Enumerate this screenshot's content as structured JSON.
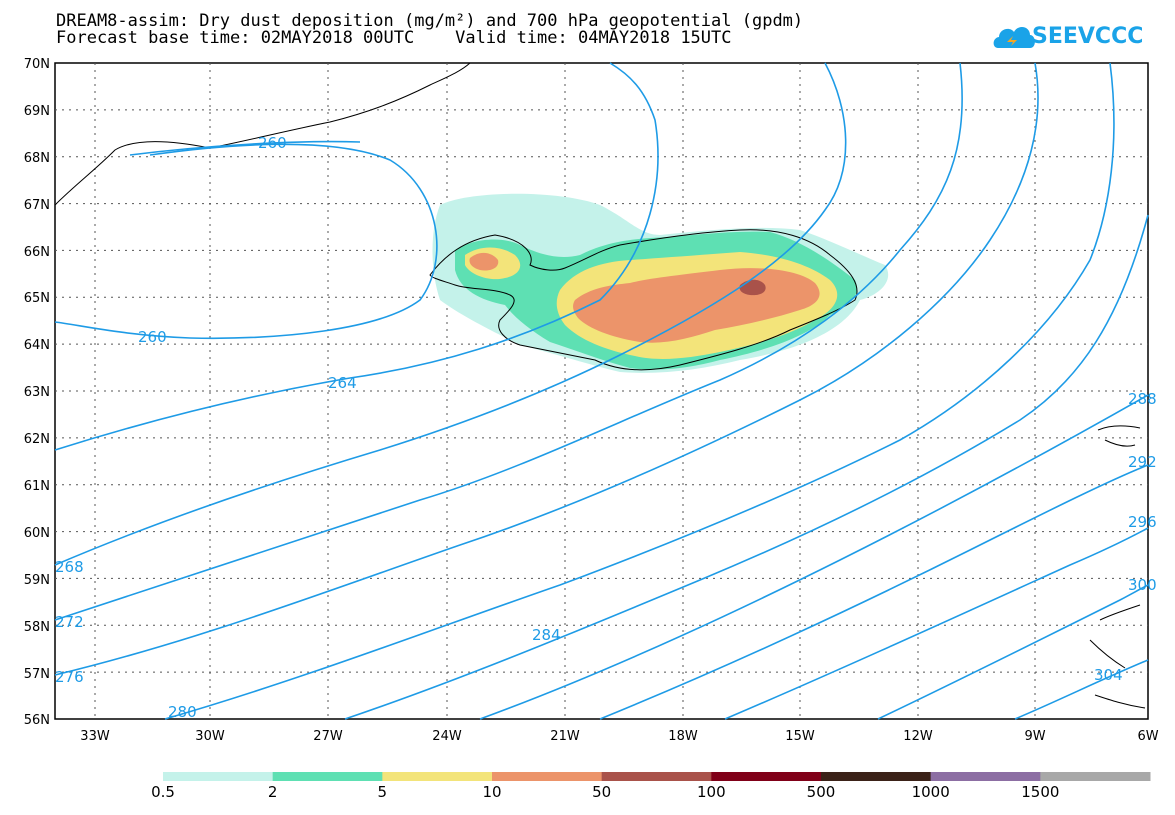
{
  "title_line1": "DREAM8-assim: Dry dust deposition (mg/m²) and 700 hPa geopotential (gpdm)",
  "title_line2": "Forecast base time: 02MAY2018 00UTC    Valid time: 04MAY2018 15UTC",
  "logo_text": "SEEVCCC",
  "map": {
    "lat_labels": [
      "70N",
      "69N",
      "68N",
      "67N",
      "66N",
      "65N",
      "64N",
      "63N",
      "62N",
      "61N",
      "60N",
      "59N",
      "58N",
      "57N",
      "56N"
    ],
    "lon_labels": [
      "33W",
      "30W",
      "27W",
      "24W",
      "21W",
      "18W",
      "15W",
      "12W",
      "9W",
      "6W"
    ],
    "contour_labels": [
      "260",
      "260",
      "264",
      "268",
      "272",
      "276",
      "280",
      "284",
      "288",
      "292",
      "296",
      "300",
      "304"
    ],
    "colors": {
      "contour": "#1e9be6",
      "dust_levels": [
        "#c4f2ea",
        "#5ee0b3",
        "#f3e47a",
        "#ec946a",
        "#a9524a",
        "#800018",
        "#3b2218",
        "#8c6ea3",
        "#a8a8a8"
      ]
    }
  },
  "legend": {
    "labels": [
      "0.5",
      "2",
      "5",
      "10",
      "50",
      "100",
      "500",
      "1000",
      "1500"
    ]
  }
}
